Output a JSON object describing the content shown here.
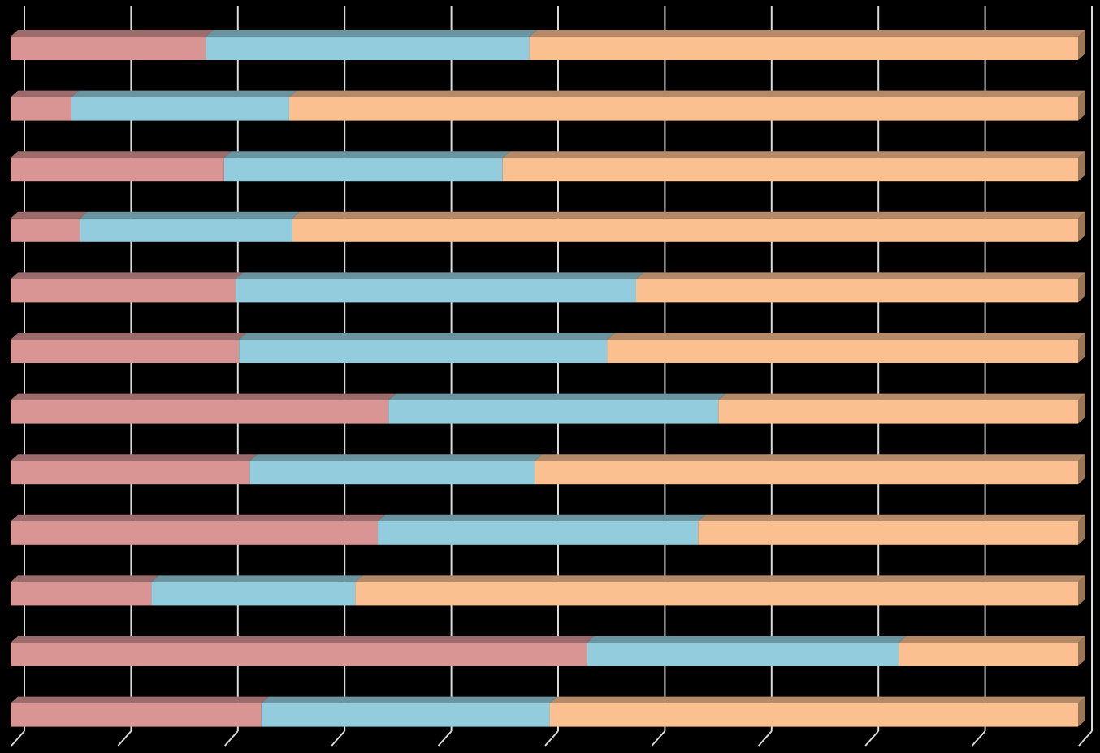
{
  "chart_data": {
    "type": "bar",
    "orientation": "horizontal",
    "stacked": "percent",
    "three_d": true,
    "grid": true,
    "legend": "none",
    "xlim": [
      0,
      100
    ],
    "categories": [
      "",
      "",
      "",
      "",
      "",
      "",
      "",
      "",
      "",
      "",
      "",
      ""
    ],
    "series": [
      {
        "color": "#D99594",
        "values": [
          18.3,
          5.7,
          20.0,
          6.5,
          21.1,
          21.4,
          35.4,
          22.4,
          34.4,
          13.2,
          54.0,
          23.5
        ]
      },
      {
        "color": "#93CDDD",
        "values": [
          30.3,
          20.4,
          26.1,
          19.9,
          37.5,
          34.5,
          30.9,
          26.7,
          30.0,
          19.1,
          29.2,
          27.0
        ]
      },
      {
        "color": "#FAC090",
        "values": [
          51.4,
          73.9,
          53.9,
          73.6,
          41.4,
          44.1,
          33.7,
          50.9,
          35.6,
          67.7,
          16.8,
          49.5
        ]
      }
    ],
    "colors": {
      "background": "#000000",
      "gridline": "#D9D9D9"
    }
  }
}
